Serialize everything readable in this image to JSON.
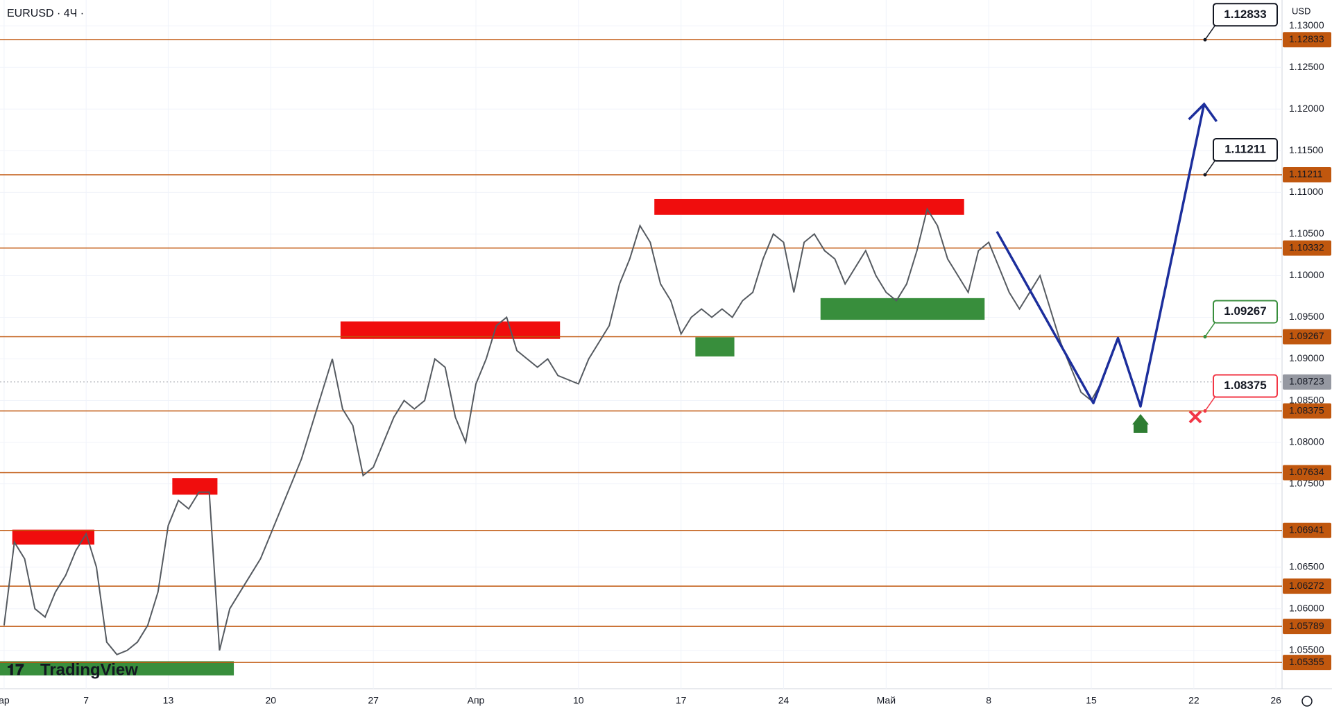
{
  "chart_data": {
    "type": "line",
    "title": "EURUSD · 4Ч ·",
    "currency": "USD",
    "watermark": "TradingView",
    "xlim": [
      -0.2,
      62.3
    ],
    "ylim": [
      1.0504,
      1.1331
    ],
    "xticks": [
      {
        "value": 0,
        "label": "ар"
      },
      {
        "value": 4,
        "label": "7"
      },
      {
        "value": 8,
        "label": "13"
      },
      {
        "value": 13,
        "label": "20"
      },
      {
        "value": 18,
        "label": "27"
      },
      {
        "value": 23,
        "label": "Апр"
      },
      {
        "value": 28,
        "label": "10"
      },
      {
        "value": 33,
        "label": "17"
      },
      {
        "value": 38,
        "label": "24"
      },
      {
        "value": 43,
        "label": "Май"
      },
      {
        "value": 48,
        "label": "8"
      },
      {
        "value": 53,
        "label": "15"
      },
      {
        "value": 58,
        "label": "22"
      },
      {
        "value": 62,
        "label": "26"
      }
    ],
    "yticks": [
      {
        "value": 1.13,
        "label": "1.13000"
      },
      {
        "value": 1.125,
        "label": "1.12500"
      },
      {
        "value": 1.12,
        "label": "1.12000"
      },
      {
        "value": 1.115,
        "label": "1.11500"
      },
      {
        "value": 1.11,
        "label": "1.11000"
      },
      {
        "value": 1.105,
        "label": "1.10500"
      },
      {
        "value": 1.1,
        "label": "1.10000"
      },
      {
        "value": 1.095,
        "label": "1.09500"
      },
      {
        "value": 1.09,
        "label": "1.09000"
      },
      {
        "value": 1.085,
        "label": "1.08500"
      },
      {
        "value": 1.08,
        "label": "1.08000"
      },
      {
        "value": 1.075,
        "label": "1.07500"
      },
      {
        "value": 1.065,
        "label": "1.06500"
      },
      {
        "value": 1.06,
        "label": "1.06000"
      },
      {
        "value": 1.055,
        "label": "1.05500"
      }
    ],
    "series": [
      {
        "name": "EURUSD",
        "color": "#555a60",
        "x": [
          0,
          0.5,
          1,
          1.5,
          2,
          2.5,
          3,
          3.5,
          4,
          4.5,
          5,
          5.5,
          6,
          6.5,
          7,
          7.5,
          8,
          8.5,
          9,
          9.5,
          10,
          10.5,
          11,
          11.5,
          12,
          12.5,
          13,
          13.5,
          14,
          14.5,
          15,
          15.5,
          16,
          16.5,
          17,
          17.5,
          18,
          18.5,
          19,
          19.5,
          20,
          20.5,
          21,
          21.5,
          22,
          22.5,
          23,
          23.5,
          24,
          24.5,
          25,
          25.5,
          26,
          26.5,
          27,
          28,
          28.5,
          29,
          29.5,
          30,
          30.5,
          31,
          31.5,
          32,
          32.5,
          33,
          33.5,
          34,
          34.5,
          35,
          35.5,
          36,
          36.5,
          37,
          37.5,
          38,
          38.5,
          39,
          39.5,
          40,
          40.5,
          41,
          41.5,
          42,
          42.5,
          43,
          43.5,
          44,
          44.5,
          45,
          45.5,
          46,
          46.5,
          47,
          47.5,
          48,
          48.5,
          49,
          49.5,
          50,
          50.5,
          51,
          51.5,
          52,
          52.5,
          53,
          53.5
        ],
        "values": [
          1.058,
          1.068,
          1.066,
          1.06,
          1.059,
          1.062,
          1.064,
          1.067,
          1.069,
          1.065,
          1.056,
          1.0545,
          1.055,
          1.056,
          1.058,
          1.062,
          1.07,
          1.073,
          1.072,
          1.074,
          1.074,
          1.055,
          1.06,
          1.062,
          1.064,
          1.066,
          1.069,
          1.072,
          1.075,
          1.078,
          1.082,
          1.086,
          1.09,
          1.084,
          1.082,
          1.076,
          1.077,
          1.08,
          1.083,
          1.085,
          1.084,
          1.085,
          1.09,
          1.089,
          1.083,
          1.08,
          1.087,
          1.09,
          1.094,
          1.095,
          1.091,
          1.09,
          1.089,
          1.09,
          1.088,
          1.087,
          1.09,
          1.092,
          1.094,
          1.099,
          1.102,
          1.106,
          1.104,
          1.099,
          1.097,
          1.093,
          1.095,
          1.096,
          1.095,
          1.096,
          1.095,
          1.097,
          1.098,
          1.102,
          1.105,
          1.104,
          1.098,
          1.104,
          1.105,
          1.103,
          1.102,
          1.099,
          1.101,
          1.103,
          1.1,
          1.098,
          1.097,
          1.099,
          1.103,
          1.108,
          1.106,
          1.102,
          1.1,
          1.098,
          1.103,
          1.104,
          1.101,
          1.098,
          1.096,
          1.098,
          1.1,
          1.096,
          1.092,
          1.089,
          1.086,
          1.085,
          1.0872
        ]
      }
    ],
    "levels": [
      {
        "value": 1.12833,
        "color": "#c0570e",
        "callout": "#131722"
      },
      {
        "value": 1.11211,
        "color": "#c0570e",
        "callout": "#131722"
      },
      {
        "value": 1.10332,
        "color": "#c0570e"
      },
      {
        "value": 1.09267,
        "color": "#c0570e",
        "callout": "#388e3c"
      },
      {
        "value": 1.08723,
        "color": "#9598a1",
        "current": true
      },
      {
        "value": 1.08375,
        "color": "#c0570e",
        "callout": "#f23645"
      },
      {
        "value": 1.07634,
        "color": "#c0570e"
      },
      {
        "value": 1.06941,
        "color": "#c0570e"
      },
      {
        "value": 1.06272,
        "color": "#c0570e"
      },
      {
        "value": 1.05789,
        "color": "#c0570e"
      },
      {
        "value": 1.05355,
        "color": "#c0570e"
      }
    ],
    "zones": [
      {
        "x": [
          0.4,
          4.4
        ],
        "y": [
          1.0695,
          1.0677
        ],
        "color": "#f00d0d"
      },
      {
        "x": [
          8.2,
          10.4
        ],
        "y": [
          1.0757,
          1.0737
        ],
        "color": "#f00d0d"
      },
      {
        "x": [
          16.4,
          27.1
        ],
        "y": [
          1.0945,
          1.0924
        ],
        "color": "#f00d0d"
      },
      {
        "x": [
          31.7,
          46.8
        ],
        "y": [
          1.1092,
          1.1073
        ],
        "color": "#f00d0d"
      },
      {
        "x": [
          -0.2,
          11.2
        ],
        "y": [
          1.0537,
          1.052
        ],
        "color": "#388e3c"
      },
      {
        "x": [
          33.7,
          35.6
        ],
        "y": [
          1.0926,
          1.0903
        ],
        "color": "#388e3c"
      },
      {
        "x": [
          39.8,
          47.8
        ],
        "y": [
          1.0973,
          1.0947
        ],
        "color": "#388e3c"
      }
    ],
    "projection": {
      "color": "#1c2e9c",
      "x": [
        48.4,
        53.1,
        54.3,
        55.4,
        58.5
      ],
      "values": [
        1.1053,
        1.0847,
        1.0925,
        1.0843,
        1.1206
      ]
    }
  }
}
